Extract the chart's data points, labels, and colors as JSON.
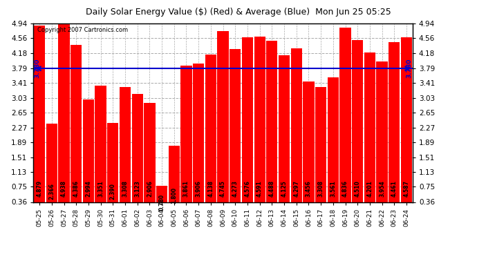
{
  "title": "Daily Solar Energy Value ($) (Red) & Average (Blue)  Mon Jun 25 05:25",
  "copyright": "Copyright 2007 Cartronics.com",
  "average": 3.78,
  "categories": [
    "05-25",
    "05-26",
    "05-27",
    "05-28",
    "05-29",
    "05-30",
    "05-31",
    "06-01",
    "06-02",
    "06-03",
    "06-04",
    "06-05",
    "06-06",
    "06-07",
    "06-08",
    "06-09",
    "06-10",
    "06-11",
    "06-12",
    "06-13",
    "06-14",
    "06-15",
    "06-16",
    "06-17",
    "06-18",
    "06-19",
    "06-20",
    "06-21",
    "06-22",
    "06-23",
    "06-24"
  ],
  "values": [
    4.879,
    2.366,
    4.938,
    4.386,
    2.994,
    3.351,
    2.39,
    3.308,
    3.123,
    2.906,
    0.78,
    1.8,
    3.861,
    3.906,
    4.138,
    4.745,
    4.273,
    4.576,
    4.591,
    4.488,
    4.125,
    4.297,
    3.456,
    3.308,
    3.561,
    4.836,
    4.51,
    4.201,
    3.954,
    4.461,
    4.587
  ],
  "bar_color": "#FF0000",
  "avg_line_color": "#0000CD",
  "bg_color": "#FFFFFF",
  "plot_bg_color": "#FFFFFF",
  "grid_color": "#AAAAAA",
  "title_color": "#000000",
  "text_color": "#000000",
  "bar_text_color": "#000000",
  "avg_label": "3.780",
  "ylim": [
    0.36,
    4.94
  ],
  "yticks": [
    0.36,
    0.75,
    1.13,
    1.51,
    1.89,
    2.27,
    2.65,
    3.03,
    3.41,
    3.79,
    4.18,
    4.56,
    4.94
  ],
  "figwidth": 6.9,
  "figheight": 3.75,
  "dpi": 100
}
